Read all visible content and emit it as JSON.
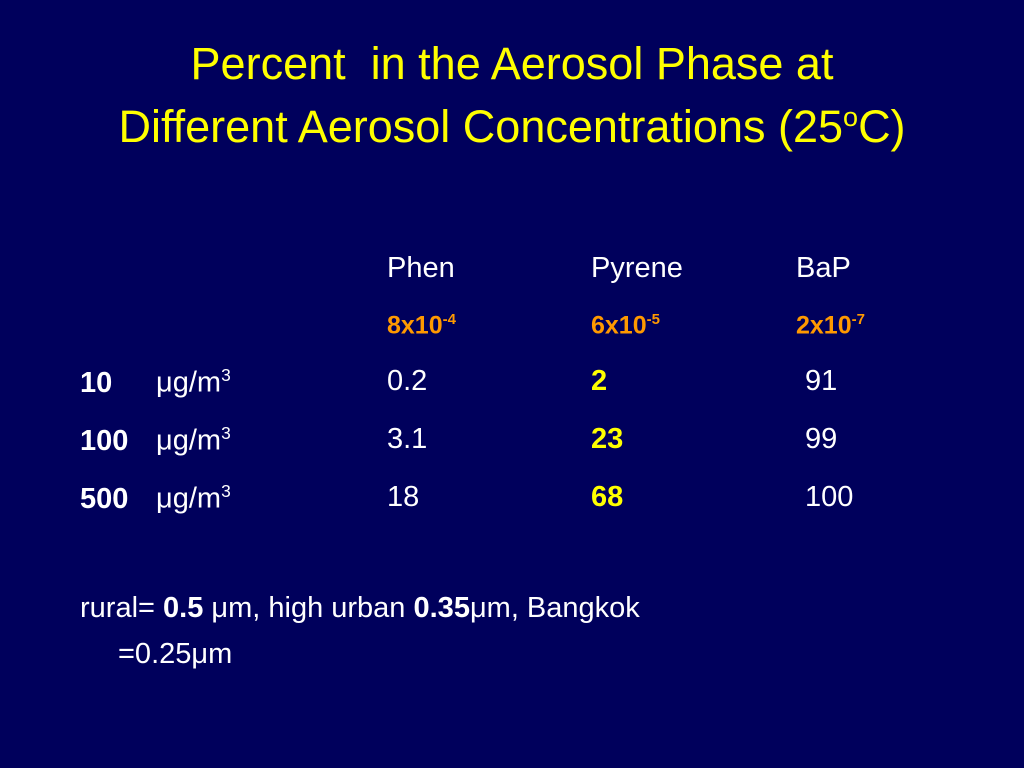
{
  "title": {
    "line1": "Percent  in the Aerosol Phase at",
    "line2": "Different Aerosol Concentrations (25",
    "superscript": "o",
    "line2_end": "C)"
  },
  "table": {
    "columns": [
      "Phen",
      "Pyrene",
      "BaP"
    ],
    "volatility": [
      {
        "base": "8x10",
        "exponent": "-4"
      },
      {
        "base": "6x10",
        "exponent": "-5"
      },
      {
        "base": "2x10",
        "exponent": "-7"
      }
    ],
    "rows": [
      {
        "concentration": "10",
        "unit": "μg/m",
        "unit_exponent": "3",
        "values": [
          0.2,
          2,
          91
        ]
      },
      {
        "concentration": "100",
        "unit": "μg/m",
        "unit_exponent": "3",
        "values": [
          3.1,
          23,
          99
        ]
      },
      {
        "concentration": "500",
        "unit": "μg/m",
        "unit_exponent": "3",
        "values": [
          18,
          68,
          100
        ]
      }
    ]
  },
  "note": {
    "parts": [
      "rural= ",
      "0.5",
      " μm, high urban ",
      "0.35",
      "μm, Bangkok"
    ],
    "line2": "=0.25μm"
  }
}
